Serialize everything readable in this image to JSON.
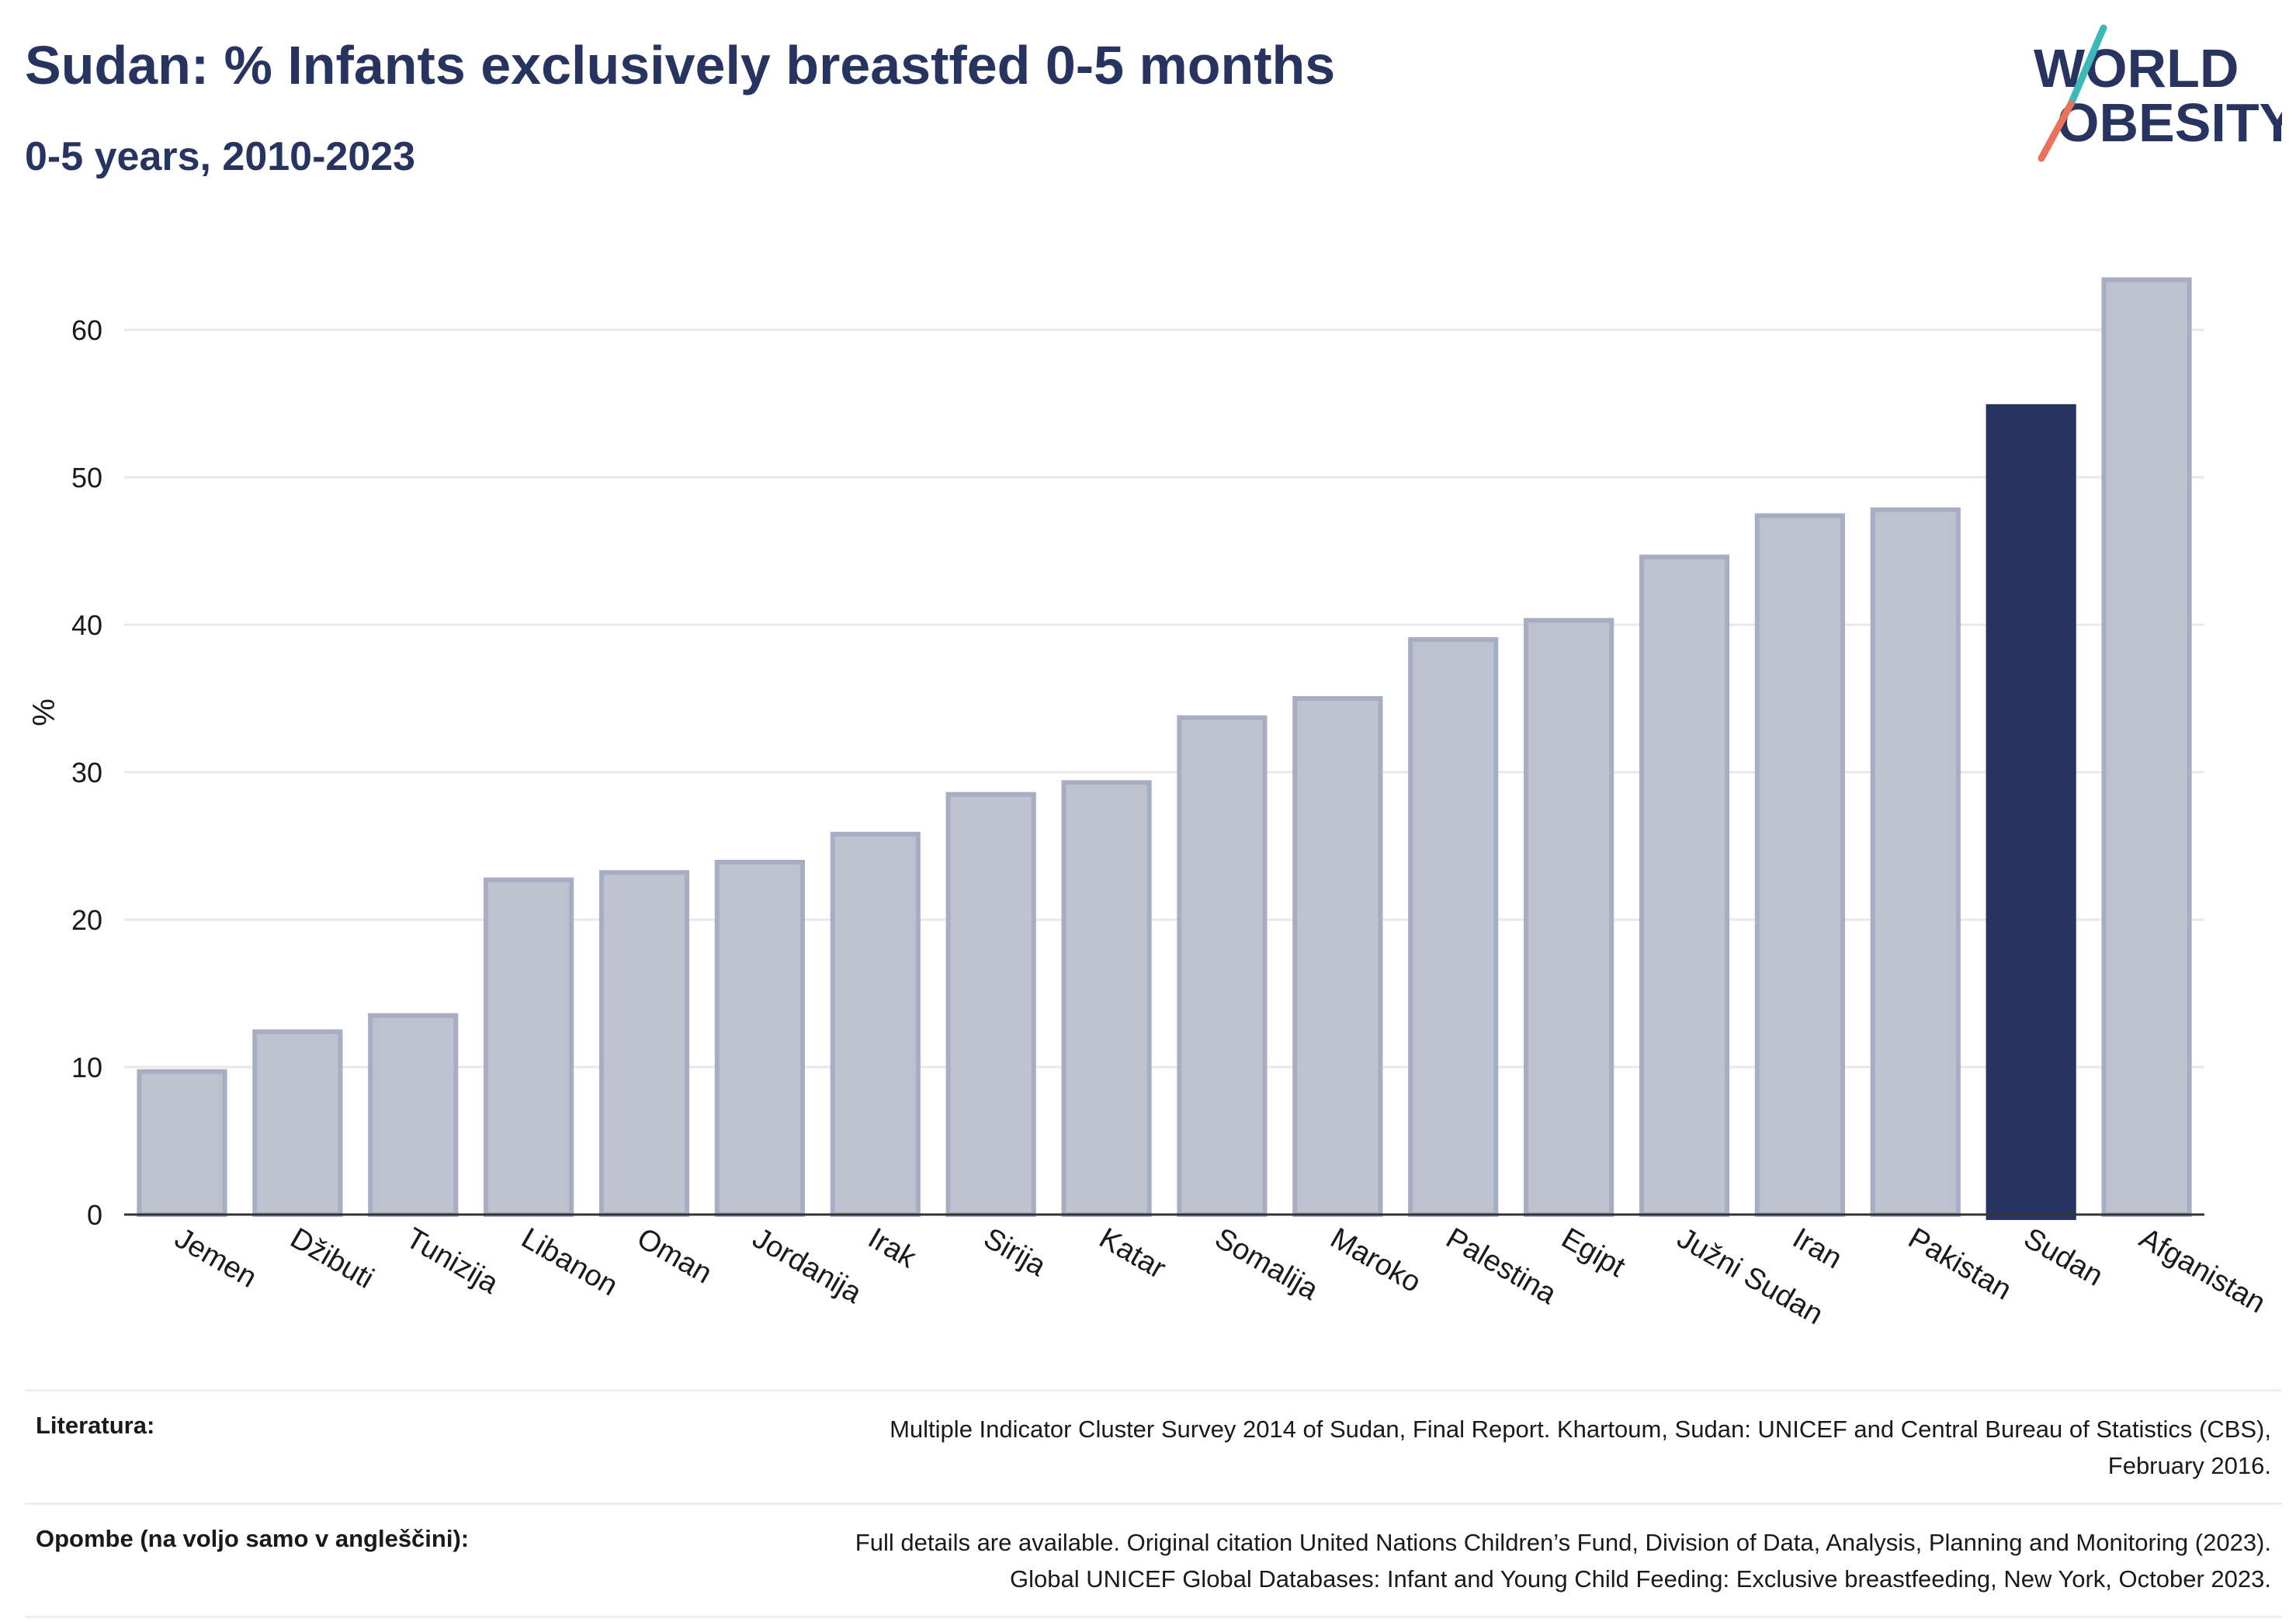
{
  "header": {
    "title": "Sudan: % Infants exclusively breastfed 0-5 months",
    "subtitle": "0-5 years, 2010-2023"
  },
  "logo": {
    "line1": "WORLD",
    "line2": "OBESITY"
  },
  "colors": {
    "highlight": "#283460",
    "bar_fill": "#bec2cf",
    "bar_stroke": "#a7adc2",
    "grid": "#e8e8ec",
    "logo_teal": "#3cb8b8",
    "logo_coral": "#e8735a"
  },
  "chart_data": {
    "type": "bar",
    "categories": [
      "Jemen",
      "Džibuti",
      "Tunizija",
      "Libanon",
      "Oman",
      "Jordanija",
      "Irak",
      "Sirija",
      "Katar",
      "Somalija",
      "Maroko",
      "Palestina",
      "Egipt",
      "Južni Sudan",
      "Iran",
      "Pakistan",
      "Sudan",
      "Afganistan"
    ],
    "values": [
      9.7,
      12.4,
      13.5,
      22.7,
      23.2,
      23.9,
      25.8,
      28.5,
      29.3,
      33.7,
      35.0,
      39.0,
      40.3,
      44.6,
      47.4,
      47.8,
      54.8,
      63.4
    ],
    "highlight": "Sudan",
    "ylabel": "%",
    "ylim": [
      0,
      65
    ],
    "yticks": [
      0,
      10,
      20,
      30,
      40,
      50,
      60
    ],
    "grid": true
  },
  "footer": {
    "references_label": "Literatura:",
    "references_line1": "Multiple Indicator Cluster Survey 2014 of Sudan, Final Report. Khartoum, Sudan: UNICEF and Central Bureau of Statistics (CBS),",
    "references_line2": "February 2016.",
    "notes_label": "Opombe (na voljo samo v angleščini):",
    "notes_line1": "Full details are available. Original citation United Nations Children’s Fund, Division of Data, Analysis, Planning and Monitoring (2023).",
    "notes_line2": "Global UNICEF Global Databases: Infant and Young Child Feeding: Exclusive breastfeeding, New York, October 2023."
  }
}
